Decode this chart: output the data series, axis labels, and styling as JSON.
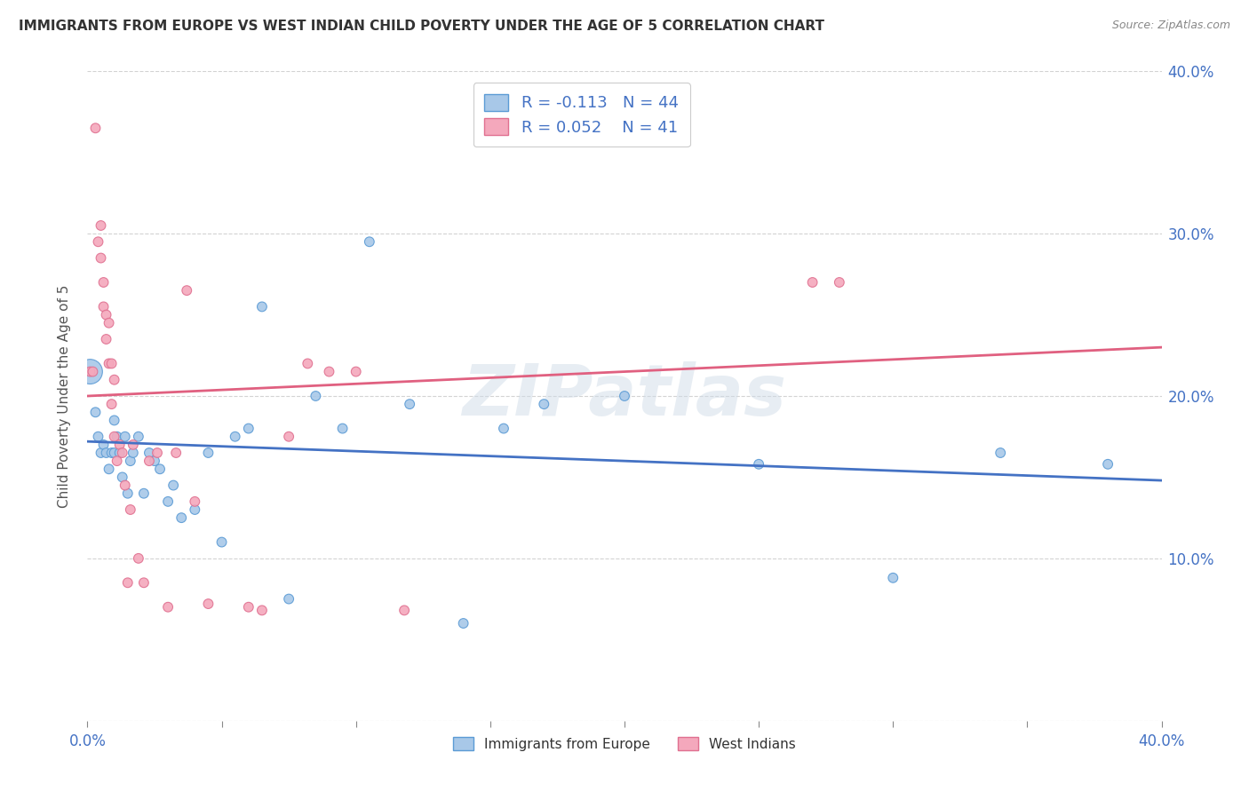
{
  "title": "IMMIGRANTS FROM EUROPE VS WEST INDIAN CHILD POVERTY UNDER THE AGE OF 5 CORRELATION CHART",
  "source": "Source: ZipAtlas.com",
  "ylabel": "Child Poverty Under the Age of 5",
  "xlim": [
    0,
    0.4
  ],
  "ylim": [
    0,
    0.4
  ],
  "xtick_values": [
    0.0,
    0.05,
    0.1,
    0.15,
    0.2,
    0.25,
    0.3,
    0.35,
    0.4
  ],
  "xtick_label_values": [
    0.0,
    0.4
  ],
  "xtick_labels_shown": [
    "0.0%",
    "40.0%"
  ],
  "ytick_values": [
    0.0,
    0.1,
    0.2,
    0.3,
    0.4
  ],
  "ytick_labels_right": [
    "",
    "10.0%",
    "20.0%",
    "30.0%",
    "40.0%"
  ],
  "blue_R": -0.113,
  "blue_N": 44,
  "pink_R": 0.052,
  "pink_N": 41,
  "blue_color": "#a8c8e8",
  "pink_color": "#f4a8bc",
  "blue_edge_color": "#5b9bd5",
  "pink_edge_color": "#e07090",
  "blue_line_color": "#4472c4",
  "pink_line_color": "#e06080",
  "legend_blue_label": "Immigrants from Europe",
  "legend_pink_label": "West Indians",
  "background_color": "#ffffff",
  "grid_color": "#c8c8c8",
  "blue_line_start_y": 0.172,
  "blue_line_end_y": 0.148,
  "pink_line_start_y": 0.2,
  "pink_line_end_y": 0.23,
  "blue_x": [
    0.001,
    0.003,
    0.004,
    0.005,
    0.006,
    0.007,
    0.008,
    0.009,
    0.01,
    0.01,
    0.011,
    0.012,
    0.013,
    0.014,
    0.015,
    0.016,
    0.017,
    0.019,
    0.021,
    0.023,
    0.025,
    0.027,
    0.03,
    0.032,
    0.035,
    0.04,
    0.045,
    0.05,
    0.055,
    0.06,
    0.065,
    0.075,
    0.085,
    0.095,
    0.105,
    0.12,
    0.14,
    0.155,
    0.17,
    0.2,
    0.25,
    0.3,
    0.34,
    0.38
  ],
  "blue_y": [
    0.215,
    0.19,
    0.175,
    0.165,
    0.17,
    0.165,
    0.155,
    0.165,
    0.185,
    0.165,
    0.175,
    0.165,
    0.15,
    0.175,
    0.14,
    0.16,
    0.165,
    0.175,
    0.14,
    0.165,
    0.16,
    0.155,
    0.135,
    0.145,
    0.125,
    0.13,
    0.165,
    0.11,
    0.175,
    0.18,
    0.255,
    0.075,
    0.2,
    0.18,
    0.295,
    0.195,
    0.06,
    0.18,
    0.195,
    0.2,
    0.158,
    0.088,
    0.165,
    0.158
  ],
  "pink_x": [
    0.001,
    0.002,
    0.003,
    0.004,
    0.005,
    0.005,
    0.006,
    0.006,
    0.007,
    0.007,
    0.008,
    0.008,
    0.009,
    0.009,
    0.01,
    0.01,
    0.011,
    0.012,
    0.013,
    0.014,
    0.016,
    0.017,
    0.019,
    0.021,
    0.023,
    0.026,
    0.03,
    0.033,
    0.037,
    0.04,
    0.045,
    0.06,
    0.065,
    0.075,
    0.082,
    0.09,
    0.1,
    0.118,
    0.27,
    0.28,
    0.015
  ],
  "pink_y": [
    0.215,
    0.215,
    0.365,
    0.295,
    0.305,
    0.285,
    0.27,
    0.255,
    0.25,
    0.235,
    0.245,
    0.22,
    0.22,
    0.195,
    0.21,
    0.175,
    0.16,
    0.17,
    0.165,
    0.145,
    0.13,
    0.17,
    0.1,
    0.085,
    0.16,
    0.165,
    0.07,
    0.165,
    0.265,
    0.135,
    0.072,
    0.07,
    0.068,
    0.175,
    0.22,
    0.215,
    0.215,
    0.068,
    0.27,
    0.27,
    0.085
  ],
  "blue_sizes": [
    400,
    60,
    60,
    60,
    60,
    60,
    60,
    60,
    60,
    60,
    60,
    60,
    60,
    60,
    60,
    60,
    60,
    60,
    60,
    60,
    60,
    60,
    60,
    60,
    60,
    60,
    60,
    60,
    60,
    60,
    60,
    60,
    60,
    60,
    60,
    60,
    60,
    60,
    60,
    60,
    60,
    60,
    60,
    60
  ],
  "pink_sizes": [
    60,
    60,
    60,
    60,
    60,
    60,
    60,
    60,
    60,
    60,
    60,
    60,
    60,
    60,
    60,
    60,
    60,
    60,
    60,
    60,
    60,
    60,
    60,
    60,
    60,
    60,
    60,
    60,
    60,
    60,
    60,
    60,
    60,
    60,
    60,
    60,
    60,
    60,
    60,
    60,
    60
  ]
}
